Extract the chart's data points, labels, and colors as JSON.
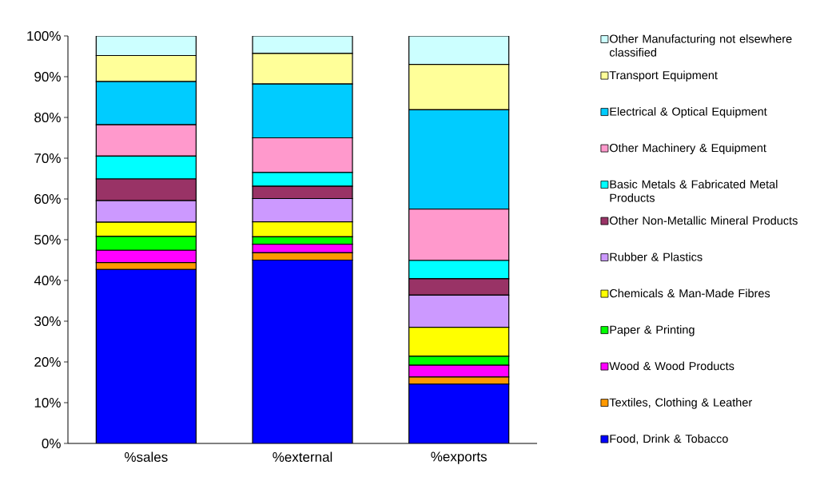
{
  "chart_data": {
    "type": "bar",
    "stacked": true,
    "categories": [
      "%sales",
      "%external",
      "%exports"
    ],
    "ylim": [
      0,
      100
    ],
    "yticks": [
      {
        "value": 0,
        "label": "0%"
      },
      {
        "value": 10,
        "label": "10%"
      },
      {
        "value": 20,
        "label": "20%"
      },
      {
        "value": 30,
        "label": "30%"
      },
      {
        "value": 40,
        "label": "40%"
      },
      {
        "value": 50,
        "label": "50%"
      },
      {
        "value": 60,
        "label": "60%"
      },
      {
        "value": 70,
        "label": "70%"
      },
      {
        "value": 80,
        "label": "80%"
      },
      {
        "value": 90,
        "label": "90%"
      },
      {
        "value": 100,
        "label": "100%"
      }
    ],
    "legend": "right",
    "grid": false,
    "series": [
      {
        "name": "Food, Drink & Tobacco",
        "color": "#0000ff",
        "values": [
          42.7,
          45.0,
          14.6
        ]
      },
      {
        "name": "Textiles, Clothing & Leather",
        "color": "#ff9900",
        "values": [
          1.7,
          1.8,
          1.7
        ]
      },
      {
        "name": "Wood & Wood Products",
        "color": "#ff00ff",
        "values": [
          3.0,
          2.1,
          2.9
        ]
      },
      {
        "name": "Paper & Printing",
        "color": "#00ff00",
        "values": [
          3.4,
          1.8,
          2.2
        ]
      },
      {
        "name": "Chemicals & Man-Made Fibres",
        "color": "#ffff00",
        "values": [
          3.5,
          3.7,
          7.1
        ]
      },
      {
        "name": "Rubber & Plastics",
        "color": "#cc99ff",
        "values": [
          5.3,
          5.7,
          7.9
        ]
      },
      {
        "name": "Other Non-Metallic Mineral Products",
        "color": "#993366",
        "values": [
          5.3,
          3.0,
          4.0
        ]
      },
      {
        "name": "Basic Metals & Fabricated Metal Products",
        "color": "#00ffff",
        "values": [
          5.6,
          3.4,
          4.5
        ]
      },
      {
        "name": "Other Machinery & Equipment",
        "color": "#ff99cc",
        "values": [
          7.7,
          8.5,
          12.6
        ]
      },
      {
        "name": "Electrical & Optical Equipment",
        "color": "#00ccff",
        "values": [
          10.6,
          13.2,
          24.4
        ]
      },
      {
        "name": "Transport Equipment",
        "color": "#ffff99",
        "values": [
          6.4,
          7.5,
          11.1
        ]
      },
      {
        "name": "Other Manufacturing not elsewhere classified",
        "color": "#ccffff",
        "values": [
          4.8,
          4.3,
          7.0
        ]
      }
    ]
  }
}
